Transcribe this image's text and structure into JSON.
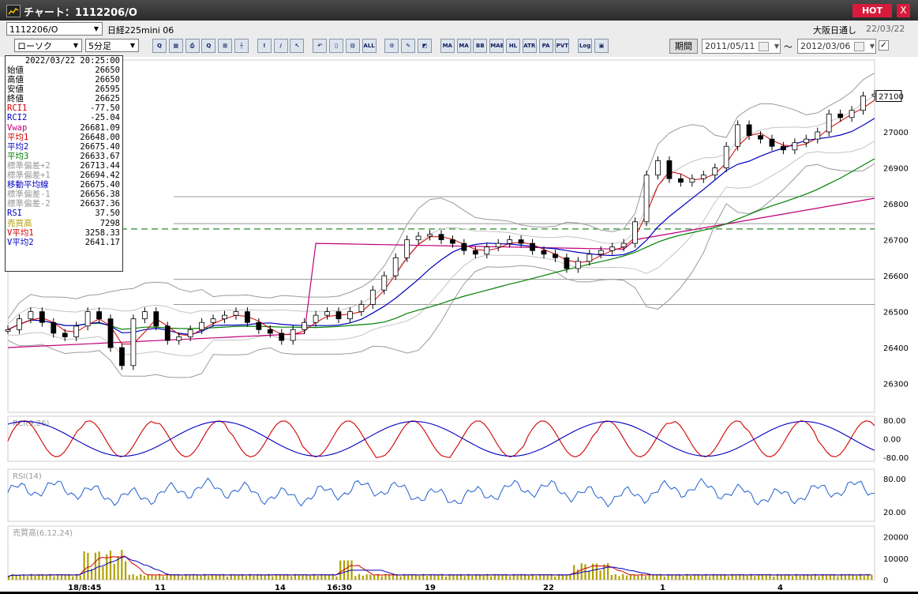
{
  "window": {
    "title": "チャート：1112206/O",
    "hot_label": "HOT",
    "close_label": "X"
  },
  "toolbar": {
    "symbol_value": "1112206/O",
    "symbol_name": "日経225mini 06",
    "chart_type": "ローソク",
    "interval": "5分足",
    "session_label": "大阪日通し",
    "date_label": "22/03/22",
    "period_button": "期間",
    "start_date": "2011/05/11",
    "end_date": "2012/03/06",
    "tilde": "～",
    "icons": [
      {
        "name": "zoom-icon",
        "glyph": "Q"
      },
      {
        "name": "layout-icon",
        "glyph": "▦"
      },
      {
        "name": "print-icon",
        "glyph": "⎙"
      },
      {
        "name": "search-chart-icon",
        "glyph": "Q"
      },
      {
        "name": "compare-icon",
        "glyph": "⊞"
      },
      {
        "name": "ticks-icon",
        "glyph": "┼"
      },
      {
        "name": "alert-icon",
        "glyph": "!"
      },
      {
        "name": "draw-line-icon",
        "glyph": "/"
      },
      {
        "name": "cursor-icon",
        "glyph": "↖"
      },
      {
        "name": "undo-icon",
        "glyph": "↶"
      },
      {
        "name": "candle-icon",
        "glyph": "▯"
      },
      {
        "name": "split-icon",
        "glyph": "⊟"
      },
      {
        "name": "all-icon",
        "glyph": "ALL"
      },
      {
        "name": "settings-icon",
        "glyph": "⚙"
      },
      {
        "name": "brush-icon",
        "glyph": "✎"
      },
      {
        "name": "palette-icon",
        "glyph": "◩"
      },
      {
        "name": "ma-icon",
        "glyph": "MA"
      },
      {
        "name": "ma-icon-2",
        "glyph": "MA"
      },
      {
        "name": "bb-icon",
        "glyph": "BB"
      },
      {
        "name": "mae-icon",
        "glyph": "MAE"
      },
      {
        "name": "hl-icon",
        "glyph": "HL"
      },
      {
        "name": "atr-icon",
        "glyph": "ATR"
      },
      {
        "name": "para-icon",
        "glyph": "PA"
      },
      {
        "name": "pvt-icon",
        "glyph": "PVT"
      },
      {
        "name": "log-icon",
        "glyph": "Log"
      },
      {
        "name": "window-icon",
        "glyph": "▣"
      }
    ]
  },
  "info": {
    "datetime": "2022/03/22  20:25:00",
    "rows": [
      {
        "label": "始値",
        "value": "26650",
        "color": "#000000"
      },
      {
        "label": "高値",
        "value": "26650",
        "color": "#000000"
      },
      {
        "label": "安値",
        "value": "26595",
        "color": "#000000"
      },
      {
        "label": "終値",
        "value": "26625",
        "color": "#000000"
      },
      {
        "label": "RCI1",
        "value": "-77.50",
        "color": "#d00000"
      },
      {
        "label": "RCI2",
        "value": "-25.04",
        "color": "#0000c0"
      },
      {
        "label": "Vwap",
        "value": "26681.09",
        "color": "#c0007a"
      },
      {
        "label": "平均1",
        "value": "26648.00",
        "color": "#d00000"
      },
      {
        "label": "平均2",
        "value": "26675.40",
        "color": "#0000c0"
      },
      {
        "label": "平均3",
        "value": "26633.67",
        "color": "#008000"
      },
      {
        "label": "標準偏差+2",
        "value": "26713.44",
        "color": "#999999"
      },
      {
        "label": "標準偏差+1",
        "value": "26694.42",
        "color": "#999999"
      },
      {
        "label": "移動平均線",
        "value": "26675.40",
        "color": "#0000c0"
      },
      {
        "label": "標準偏差-1",
        "value": "26656.38",
        "color": "#999999"
      },
      {
        "label": "標準偏差-2",
        "value": "26637.36",
        "color": "#999999"
      },
      {
        "label": "RSI",
        "value": "37.50",
        "color": "#0000c0"
      },
      {
        "label": "売買高",
        "value": "7298",
        "color": "#b0a000"
      },
      {
        "label": "V平均1",
        "value": "3258.33",
        "color": "#d00000"
      },
      {
        "label": "V平均2",
        "value": "2641.17",
        "color": "#0000c0"
      }
    ]
  },
  "chart_data": {
    "type": "line",
    "title": "",
    "price_ticks": [
      "27000",
      "26900",
      "26800",
      "26700",
      "26600",
      "26500",
      "26400",
      "26300"
    ],
    "current_price": "27100",
    "x_labels": [
      "18/8:45",
      "11",
      "14",
      "16:30",
      "19",
      "22",
      "1",
      "4"
    ],
    "close_approx": [
      26450,
      26480,
      26500,
      26470,
      26440,
      26430,
      26460,
      26500,
      26480,
      26400,
      26350,
      26480,
      26500,
      26460,
      26420,
      26430,
      26450,
      26470,
      26480,
      26490,
      26500,
      26470,
      26450,
      26440,
      26420,
      26450,
      26470,
      26490,
      26500,
      26480,
      26500,
      26520,
      26560,
      26600,
      26650,
      26700,
      26710,
      26715,
      26700,
      26690,
      26670,
      26660,
      26680,
      26690,
      26700,
      26690,
      26670,
      26660,
      26650,
      26620,
      26640,
      26660,
      26670,
      26680,
      26690,
      26750,
      26880,
      26920,
      26870,
      26860,
      26870,
      26880,
      26900,
      26960,
      27020,
      26990,
      26980,
      26960,
      26950,
      26970,
      26980,
      27000,
      27050,
      27040,
      27060,
      27100,
      27105
    ],
    "rci_panel": {
      "label": "RCI(9,26)",
      "ticks": [
        "80.00",
        "0.00",
        "-80.00"
      ]
    },
    "rsi_panel": {
      "label": "RSI(14)",
      "ticks": [
        "80.00",
        "20.00"
      ]
    },
    "volume_panel": {
      "label": "売買高(6,12,24)",
      "ticks": [
        "20000",
        "10000",
        "0"
      ]
    },
    "reference_line": "26730",
    "colors": {
      "price": "#000000",
      "ma1": "#d00000",
      "ma2": "#0000c0",
      "ma3": "#008000",
      "vwap": "#c0007a",
      "band": "#9a9a9a",
      "volume": "#b0a000"
    }
  }
}
